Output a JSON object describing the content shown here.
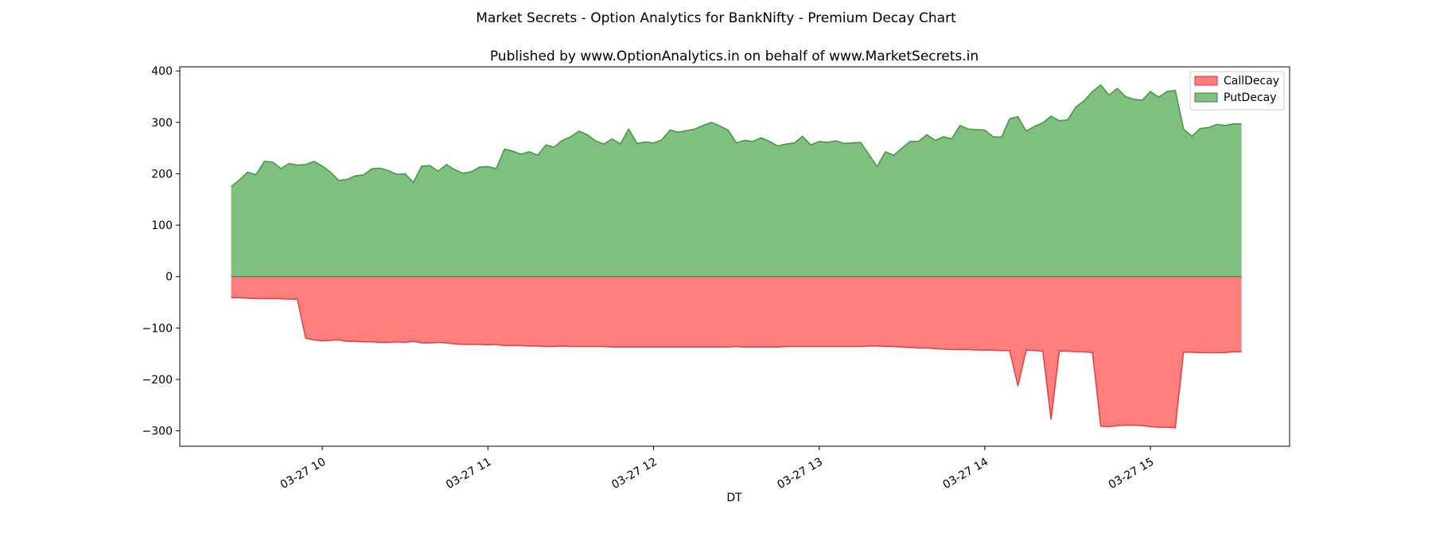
{
  "chart_data": {
    "type": "area",
    "suptitle": "Market Secrets - Option Analytics for BankNifty - Premium Decay Chart",
    "title": "Published by www.OptionAnalytics.in on behalf of www.MarketSecrets.in",
    "xlabel": "DT",
    "ylabel": "",
    "x_tick_labels": [
      "03-27 10",
      "03-27 11",
      "03-27 12",
      "03-27 13",
      "03-27 14",
      "03-27 15"
    ],
    "x_tick_hours": [
      10,
      11,
      12,
      13,
      14,
      15
    ],
    "xlim_hours": [
      9.14,
      15.84
    ],
    "ylim": [
      -330,
      408
    ],
    "y_ticks": [
      400,
      300,
      200,
      100,
      0,
      -100,
      -200,
      -300
    ],
    "y_tick_labels": [
      "400",
      "300",
      "200",
      "100",
      "0",
      "−100",
      "−200",
      "−300"
    ],
    "grid": false,
    "legend_position": "top-right",
    "colors": {
      "CallDecay_fill": "#ff7f7f",
      "CallDecay_line": "#e8242c",
      "PutDecay_fill": "#7fbf7f",
      "PutDecay_line": "#2e8b2e"
    },
    "x_hours": [
      9.45,
      9.5,
      9.55,
      9.6,
      9.65,
      9.7,
      9.75,
      9.8,
      9.85,
      9.9,
      9.95,
      10.0,
      10.05,
      10.1,
      10.15,
      10.2,
      10.25,
      10.3,
      10.35,
      10.4,
      10.45,
      10.5,
      10.55,
      10.6,
      10.65,
      10.7,
      10.75,
      10.8,
      10.85,
      10.9,
      10.95,
      11.0,
      11.05,
      11.1,
      11.15,
      11.2,
      11.25,
      11.3,
      11.35,
      11.4,
      11.45,
      11.5,
      11.55,
      11.6,
      11.65,
      11.7,
      11.75,
      11.8,
      11.85,
      11.9,
      11.95,
      12.0,
      12.05,
      12.1,
      12.15,
      12.2,
      12.25,
      12.3,
      12.35,
      12.4,
      12.45,
      12.5,
      12.55,
      12.6,
      12.65,
      12.7,
      12.75,
      12.8,
      12.85,
      12.9,
      12.95,
      13.0,
      13.05,
      13.1,
      13.15,
      13.2,
      13.25,
      13.3,
      13.35,
      13.4,
      13.45,
      13.5,
      13.55,
      13.6,
      13.65,
      13.7,
      13.75,
      13.8,
      13.85,
      13.9,
      13.95,
      14.0,
      14.05,
      14.1,
      14.15,
      14.2,
      14.25,
      14.3,
      14.35,
      14.4,
      14.45,
      14.5,
      14.55,
      14.6,
      14.65,
      14.7,
      14.75,
      14.8,
      14.85,
      14.9,
      14.95,
      15.0,
      15.05,
      15.1,
      15.15,
      15.2,
      15.25,
      15.3,
      15.35,
      15.4,
      15.45,
      15.5,
      15.55
    ],
    "series": [
      {
        "name": "CallDecay",
        "values": [
          -41,
          -41,
          -42,
          -43,
          -43,
          -43,
          -43,
          -44,
          -44,
          -120,
          -123,
          -125,
          -124,
          -123,
          -126,
          -126,
          -127,
          -127,
          -128,
          -128,
          -127,
          -128,
          -126,
          -129,
          -129,
          -128,
          -129,
          -131,
          -132,
          -132,
          -132,
          -133,
          -132,
          -134,
          -134,
          -134,
          -135,
          -135,
          -136,
          -136,
          -135,
          -136,
          -136,
          -136,
          -136,
          -136,
          -137,
          -137,
          -137,
          -137,
          -137,
          -137,
          -137,
          -137,
          -137,
          -137,
          -137,
          -137,
          -137,
          -137,
          -137,
          -136,
          -137,
          -137,
          -137,
          -137,
          -137,
          -136,
          -136,
          -136,
          -136,
          -136,
          -136,
          -136,
          -136,
          -136,
          -136,
          -135,
          -135,
          -136,
          -136,
          -137,
          -138,
          -139,
          -139,
          -140,
          -141,
          -142,
          -142,
          -142,
          -143,
          -143,
          -143,
          -144,
          -144,
          -213,
          -143,
          -144,
          -145,
          -278,
          -145,
          -145,
          -146,
          -146,
          -148,
          -291,
          -292,
          -290,
          -289,
          -289,
          -290,
          -292,
          -293,
          -293,
          -294,
          -147,
          -147,
          -148,
          -148,
          -148,
          -148,
          -146,
          -146
        ]
      },
      {
        "name": "PutDecay",
        "values": [
          175,
          188,
          203,
          198,
          224,
          223,
          210,
          220,
          217,
          218,
          224,
          215,
          203,
          187,
          189,
          196,
          198,
          210,
          211,
          206,
          199,
          200,
          183,
          215,
          216,
          205,
          218,
          208,
          201,
          204,
          213,
          214,
          210,
          248,
          244,
          238,
          243,
          236,
          256,
          252,
          265,
          272,
          283,
          276,
          264,
          258,
          268,
          258,
          287,
          259,
          262,
          260,
          266,
          285,
          281,
          284,
          287,
          294,
          300,
          293,
          285,
          260,
          265,
          263,
          270,
          263,
          254,
          258,
          260,
          273,
          256,
          263,
          261,
          264,
          259,
          260,
          261,
          238,
          214,
          243,
          236,
          250,
          263,
          263,
          276,
          265,
          272,
          268,
          294,
          287,
          286,
          285,
          272,
          271,
          307,
          311,
          283,
          292,
          299,
          312,
          303,
          305,
          330,
          342,
          360,
          373,
          353,
          366,
          350,
          345,
          343,
          360,
          349,
          360,
          362,
          287,
          273,
          288,
          290,
          296,
          294,
          297,
          297
        ]
      }
    ]
  }
}
